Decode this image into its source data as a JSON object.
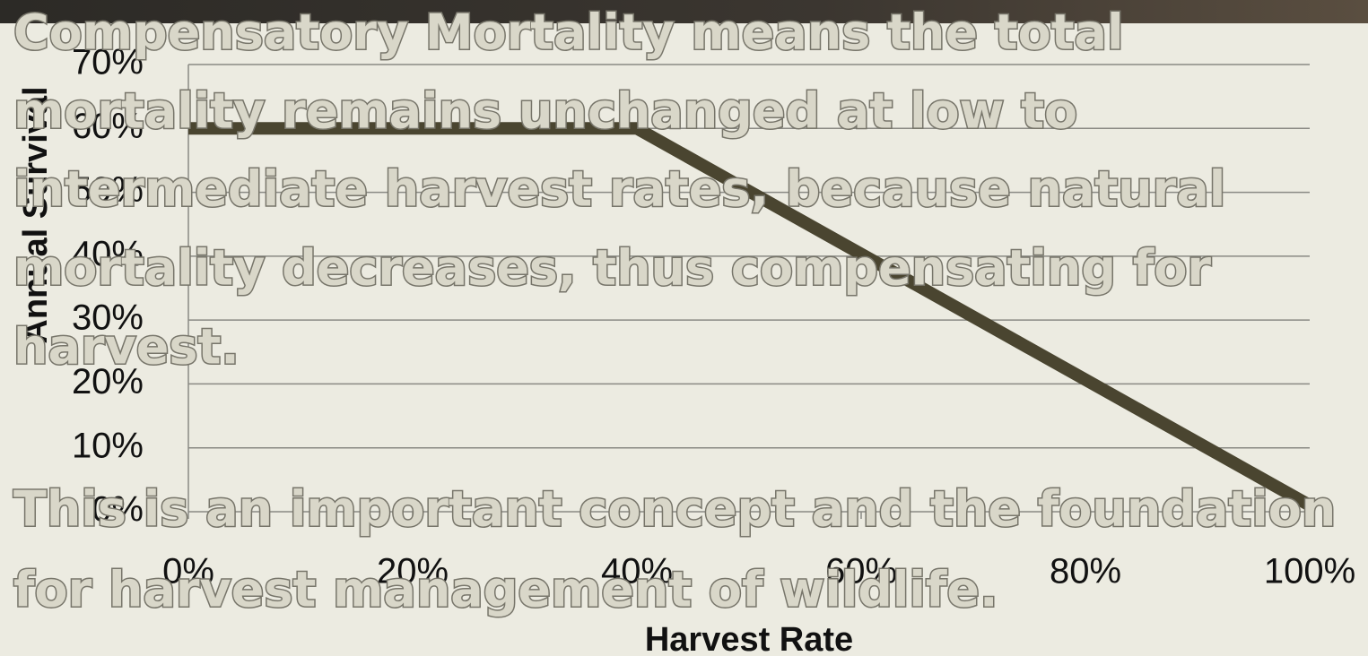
{
  "chart_data": {
    "type": "line",
    "x_label": "Harvest Rate",
    "y_label": "Annual Survival",
    "x": [
      0,
      40,
      100
    ],
    "series": [
      {
        "name": "Annual Survival",
        "color": "#4a4530",
        "values": [
          60,
          60,
          1
        ]
      }
    ],
    "xlim": [
      0,
      100
    ],
    "xticks": [
      {
        "value": 0,
        "label": "0%"
      },
      {
        "value": 20,
        "label": "20%"
      },
      {
        "value": 40,
        "label": "40%"
      },
      {
        "value": 60,
        "label": "60%"
      },
      {
        "value": 80,
        "label": "80%"
      },
      {
        "value": 100,
        "label": "100%"
      }
    ],
    "ylim": [
      0,
      70
    ],
    "yticks": [
      {
        "value": 0,
        "label": "0%"
      },
      {
        "value": 10,
        "label": "10%"
      },
      {
        "value": 20,
        "label": "20%"
      },
      {
        "value": 30,
        "label": "30%"
      },
      {
        "value": 40,
        "label": "40%"
      },
      {
        "value": 50,
        "label": "50%"
      },
      {
        "value": 60,
        "label": "60%"
      },
      {
        "value": 70,
        "label": "70%"
      }
    ],
    "grid": true,
    "annotations": [
      "Compensatory Mortality means the total",
      "mortality remains unchanged at low to",
      "intermediate harvest rates, because natural",
      "mortality decreases, thus compensating for",
      "harvest.",
      "This is an important concept and the foundation",
      "for harvest management of wildlife."
    ]
  }
}
